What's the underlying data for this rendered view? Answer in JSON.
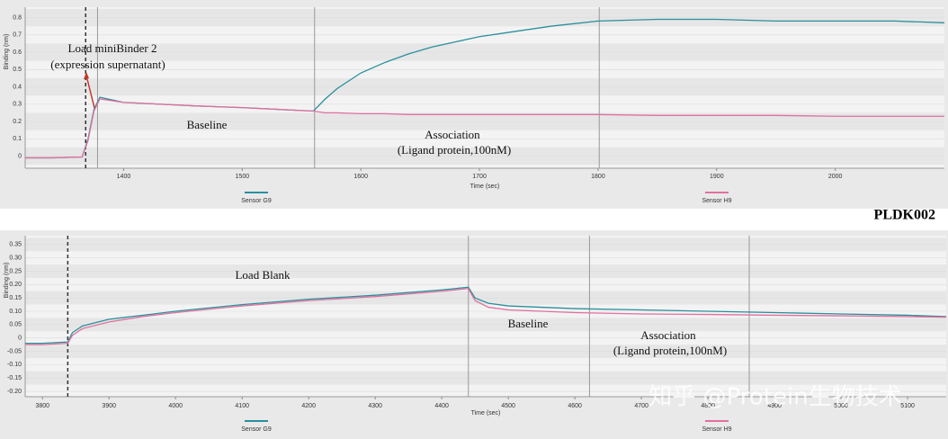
{
  "chart_data": [
    {
      "type": "line",
      "x_label": "Time (sec)",
      "y_label": "Binding (nm)",
      "x": [
        1317,
        1340,
        1365,
        1370,
        1375,
        1380,
        1400,
        1430,
        1460,
        1500,
        1530,
        1560,
        1570,
        1580,
        1600,
        1620,
        1640,
        1660,
        1680,
        1700,
        1730,
        1760,
        1800,
        1850,
        1900,
        1950,
        2000,
        2050,
        2092
      ],
      "series": [
        {
          "name": "Sensor G9",
          "color": "#2a8f9c",
          "values": [
            -0.01,
            -0.01,
            -0.005,
            0.1,
            0.27,
            0.34,
            0.31,
            0.3,
            0.29,
            0.28,
            0.27,
            0.26,
            0.33,
            0.39,
            0.48,
            0.54,
            0.59,
            0.63,
            0.66,
            0.69,
            0.72,
            0.75,
            0.78,
            0.79,
            0.79,
            0.78,
            0.78,
            0.78,
            0.77
          ]
        },
        {
          "name": "Sensor H9",
          "color": "#e0709e",
          "values": [
            -0.01,
            -0.01,
            -0.005,
            0.09,
            0.26,
            0.33,
            0.31,
            0.3,
            0.29,
            0.28,
            0.27,
            0.26,
            0.25,
            0.25,
            0.245,
            0.245,
            0.24,
            0.24,
            0.24,
            0.24,
            0.24,
            0.24,
            0.24,
            0.235,
            0.235,
            0.235,
            0.23,
            0.23,
            0.23
          ]
        }
      ],
      "xlim": [
        1317,
        2092
      ],
      "xticks": [
        1400,
        1500,
        1600,
        1700,
        1800,
        1900,
        2000
      ],
      "ylim": [
        -0.07,
        0.86
      ],
      "yticks": [
        0,
        0.1,
        0.2,
        0.3,
        0.4,
        0.5,
        0.6,
        0.7,
        0.8
      ],
      "step_lines": [
        1368,
        1378,
        1561,
        1801
      ],
      "step_line_styles": [
        "dashed",
        "solid",
        "solid",
        "solid"
      ],
      "annotations": [
        "Load miniBinder 2",
        "(expression supernatant)",
        "Baseline",
        "Association",
        "(Ligand protein,100nM)"
      ]
    },
    {
      "type": "line",
      "x_label": "Time (sec)",
      "y_label": "Binding (nm)",
      "x": [
        3774,
        3800,
        3838,
        3845,
        3860,
        3900,
        3950,
        4000,
        4100,
        4200,
        4300,
        4400,
        4440,
        4450,
        4470,
        4500,
        4550,
        4600,
        4700,
        4800,
        4900,
        5000,
        5100,
        5158
      ],
      "series": [
        {
          "name": "Sensor G9",
          "color": "#2a8f9c",
          "values": [
            -0.02,
            -0.02,
            -0.015,
            0.02,
            0.045,
            0.07,
            0.085,
            0.1,
            0.125,
            0.145,
            0.16,
            0.18,
            0.19,
            0.15,
            0.13,
            0.12,
            0.115,
            0.11,
            0.105,
            0.1,
            0.095,
            0.09,
            0.085,
            0.08
          ]
        },
        {
          "name": "Sensor H9",
          "color": "#e0709e",
          "values": [
            -0.025,
            -0.025,
            -0.02,
            0.01,
            0.035,
            0.06,
            0.08,
            0.095,
            0.12,
            0.14,
            0.155,
            0.175,
            0.185,
            0.14,
            0.115,
            0.105,
            0.1,
            0.095,
            0.09,
            0.088,
            0.085,
            0.083,
            0.08,
            0.078
          ]
        }
      ],
      "xlim": [
        3774,
        5158
      ],
      "xticks": [
        3800,
        3900,
        4000,
        4100,
        4200,
        4300,
        4400,
        4500,
        4600,
        4700,
        4800,
        4900,
        5000,
        5100
      ],
      "ylim": [
        -0.22,
        0.383
      ],
      "yticks": [
        0.35,
        {
          "value": 0.3,
          "label": "0.30"
        },
        0.25,
        {
          "value": 0.2,
          "label": "0.20"
        },
        0.15,
        {
          "value": 0.1,
          "label": "0.10"
        },
        0.05,
        0,
        -0.05,
        {
          "value": -0.1,
          "label": "-0.10"
        },
        -0.15,
        {
          "value": -0.2,
          "label": "-0.20"
        }
      ],
      "step_lines": [
        3838,
        4440,
        4622,
        4862
      ],
      "step_line_styles": [
        "dashed",
        "solid",
        "solid",
        "solid"
      ],
      "annotations": [
        "Load Blank",
        "Baseline",
        "Association",
        "(Ligand protein,100nM)"
      ]
    }
  ],
  "label": "PLDK002",
  "watermark": "知乎 @Protein生物技术"
}
